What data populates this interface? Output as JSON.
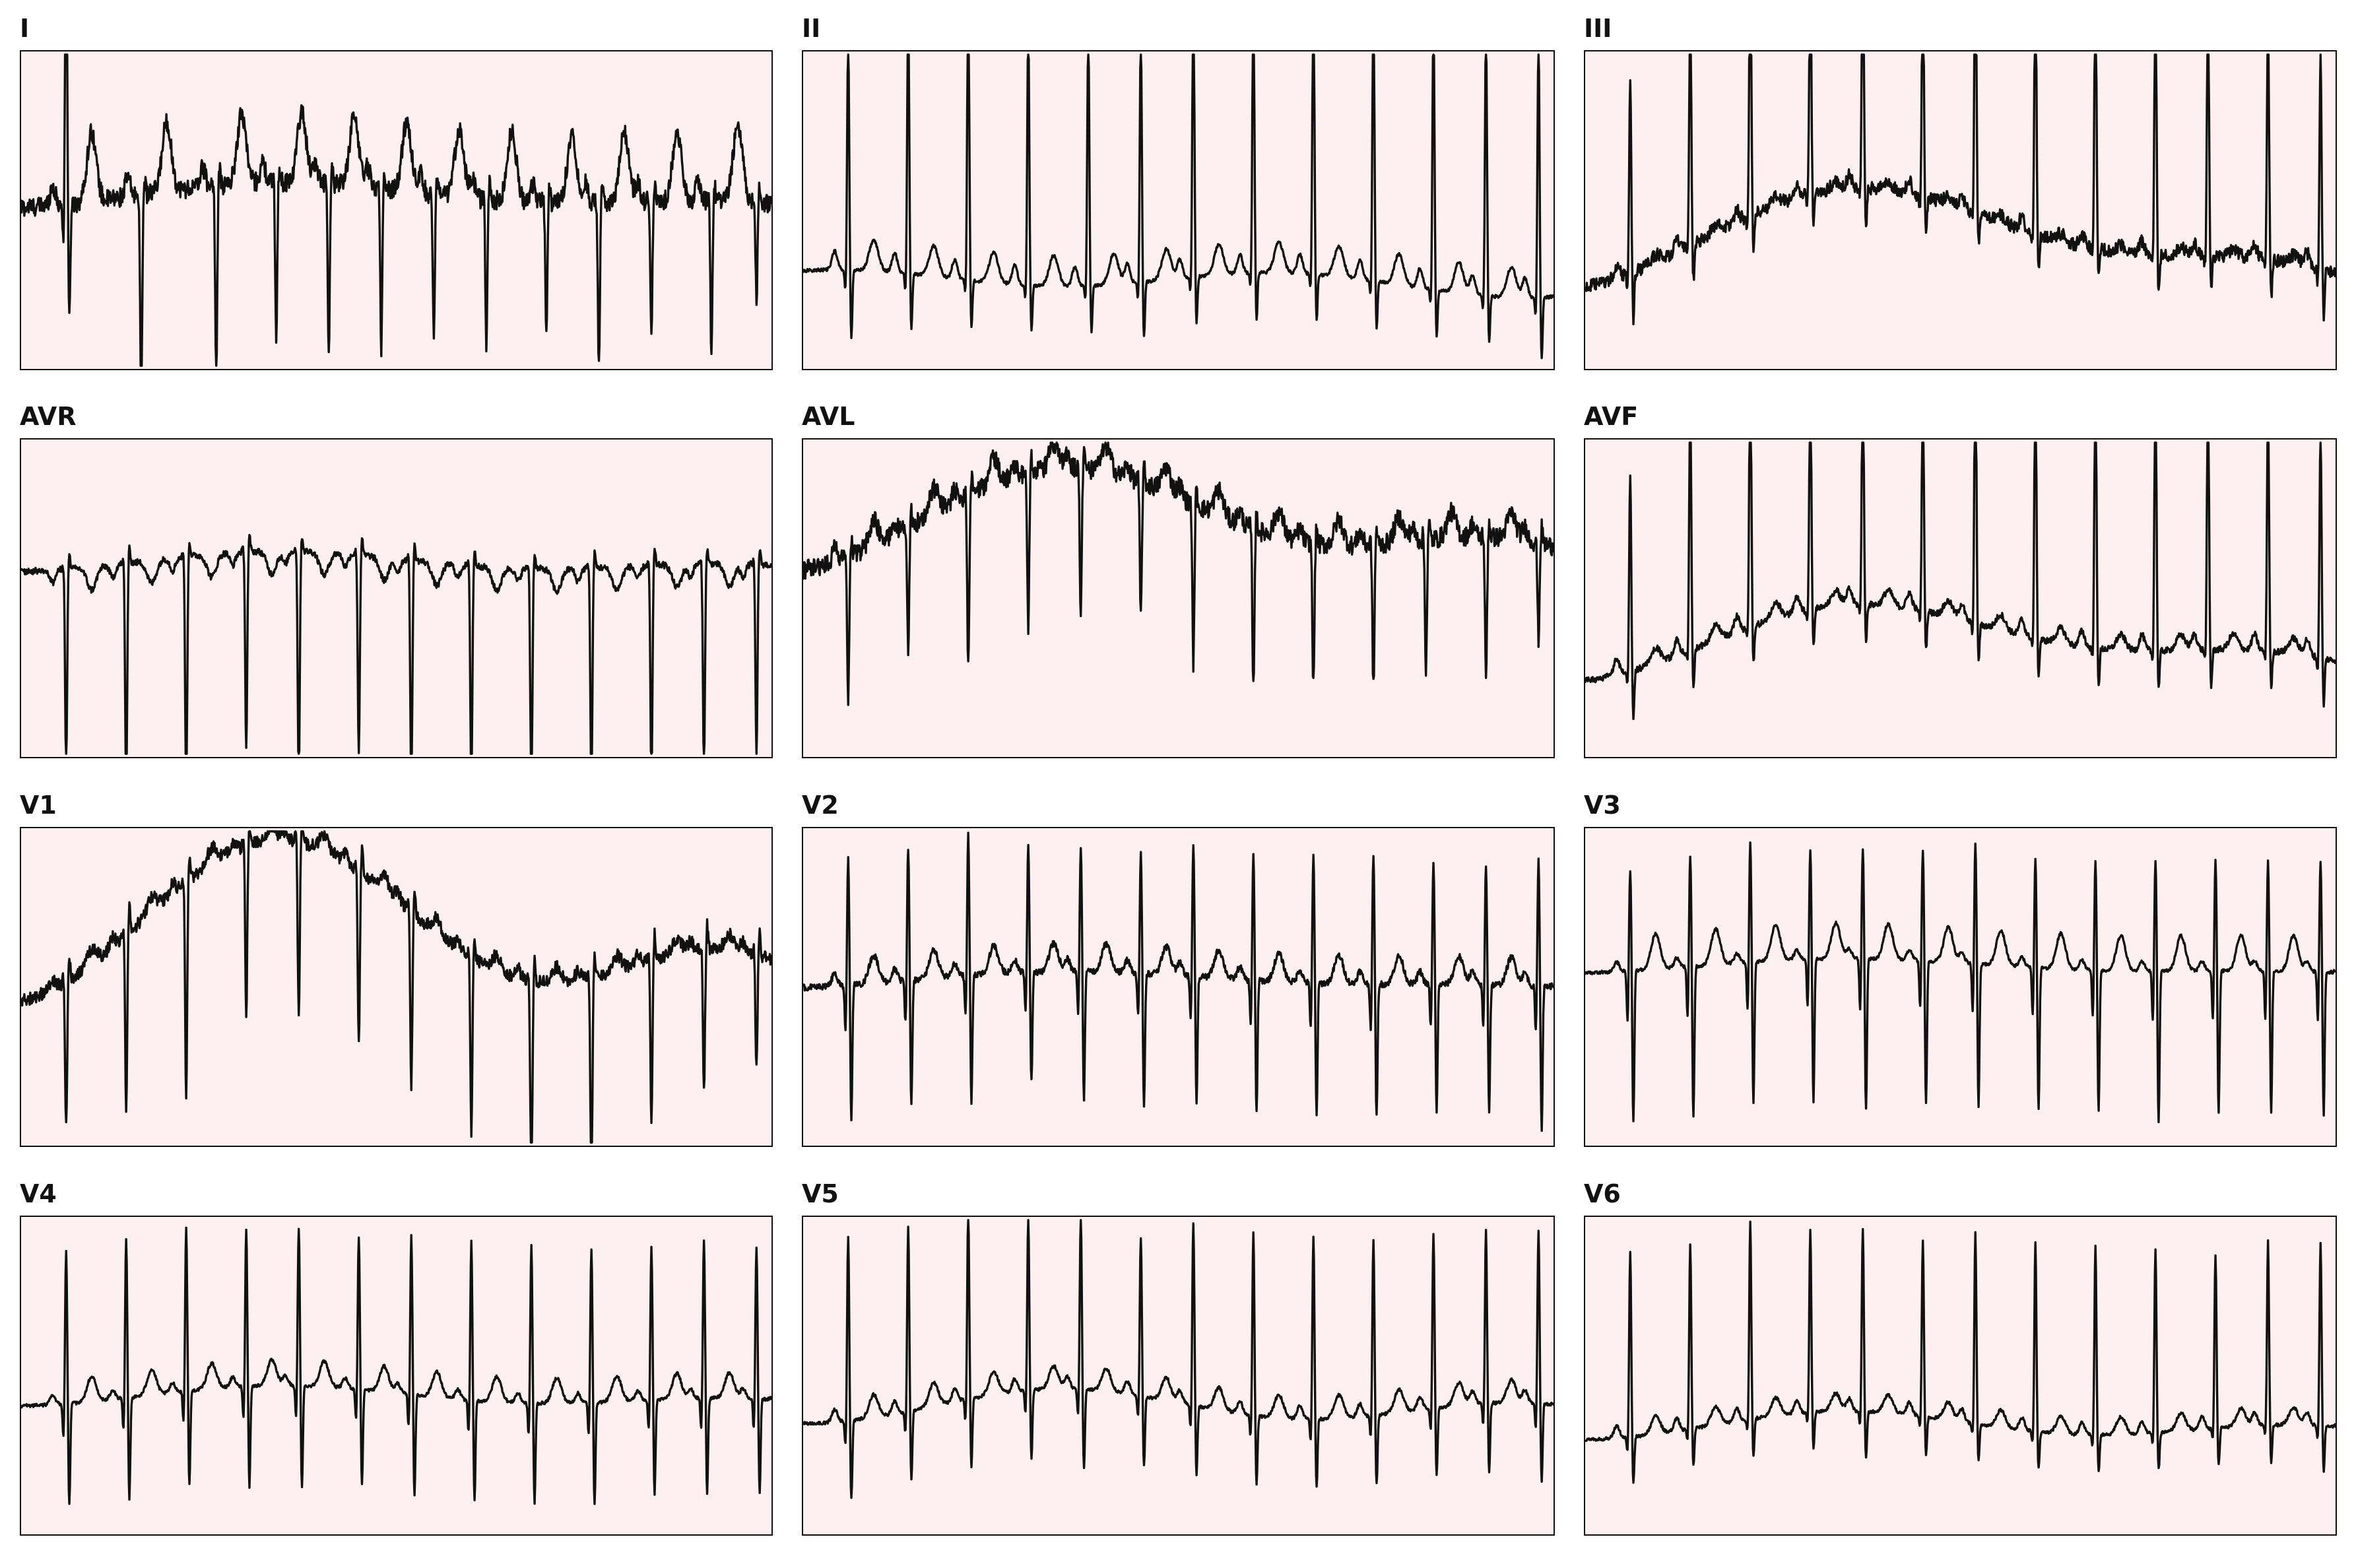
{
  "chart_data": {
    "type": "line",
    "colors": {
      "background": "#ffffff",
      "panel_fill": "#fdf0f0",
      "trace": "#111111",
      "frame": "#111111"
    },
    "grid": false,
    "leads": [
      {
        "name": "I",
        "baseline": 0.52,
        "wander": [
          0.03,
          -0.02,
          0.02,
          0.0
        ],
        "beats": [
          {
            "t": 0.06,
            "r": 0.95,
            "s": -0.38
          },
          {
            "t": 0.16,
            "r": -0.65,
            "s": 0.05
          },
          {
            "t": 0.26,
            "r": -0.6,
            "s": 0.05
          },
          {
            "t": 0.34,
            "r": -0.48,
            "s": 0.05
          },
          {
            "t": 0.41,
            "r": -0.55,
            "s": 0.05
          },
          {
            "t": 0.48,
            "r": -0.5,
            "s": 0.05
          },
          {
            "t": 0.55,
            "r": -0.45,
            "s": 0.05
          },
          {
            "t": 0.62,
            "r": -0.45,
            "s": 0.05
          },
          {
            "t": 0.7,
            "r": -0.4,
            "s": 0.05
          },
          {
            "t": 0.77,
            "r": -0.52,
            "s": 0.05
          },
          {
            "t": 0.84,
            "r": -0.4,
            "s": 0.05
          },
          {
            "t": 0.92,
            "r": -0.48,
            "s": 0.05
          },
          {
            "t": 0.98,
            "r": -0.3,
            "s": 0.05
          }
        ],
        "p": 0.06,
        "t_wave": 0.55,
        "noise": 0.06
      },
      {
        "name": "II",
        "baseline": 0.28,
        "wander": [
          0.02,
          0.03,
          -0.01,
          0.02
        ],
        "beats": [
          {
            "t": 0.06,
            "r": 0.72,
            "s": -0.22
          },
          {
            "t": 0.14,
            "r": 0.82,
            "s": -0.18
          },
          {
            "t": 0.22,
            "r": 0.95,
            "s": -0.15
          },
          {
            "t": 0.3,
            "r": 0.82,
            "s": -0.15
          },
          {
            "t": 0.38,
            "r": 0.8,
            "s": -0.15
          },
          {
            "t": 0.45,
            "r": 0.78,
            "s": -0.18
          },
          {
            "t": 0.52,
            "r": 0.93,
            "s": -0.15
          },
          {
            "t": 0.6,
            "r": 0.93,
            "s": -0.15
          },
          {
            "t": 0.68,
            "r": 0.95,
            "s": -0.15
          },
          {
            "t": 0.76,
            "r": 0.9,
            "s": -0.15
          },
          {
            "t": 0.84,
            "r": 0.85,
            "s": -0.15
          },
          {
            "t": 0.91,
            "r": 0.85,
            "s": -0.15
          },
          {
            "t": 0.98,
            "r": 0.82,
            "s": -0.2
          }
        ],
        "p": 0.06,
        "t_wave": 0.24,
        "noise": 0.01
      },
      {
        "name": "III",
        "baseline": 0.3,
        "wander": [
          0.12,
          -0.06,
          0.1,
          -0.02
        ],
        "beats": [
          {
            "t": 0.06,
            "r": 0.6,
            "s": -0.15
          },
          {
            "t": 0.14,
            "r": 0.78,
            "s": -0.12
          },
          {
            "t": 0.22,
            "r": 0.9,
            "s": -0.12
          },
          {
            "t": 0.3,
            "r": 0.78,
            "s": -0.1
          },
          {
            "t": 0.37,
            "r": 0.78,
            "s": -0.12
          },
          {
            "t": 0.45,
            "r": 0.72,
            "s": -0.12
          },
          {
            "t": 0.52,
            "r": 0.9,
            "s": -0.1
          },
          {
            "t": 0.6,
            "r": 0.9,
            "s": -0.1
          },
          {
            "t": 0.68,
            "r": 0.95,
            "s": -0.1
          },
          {
            "t": 0.76,
            "r": 0.9,
            "s": -0.12
          },
          {
            "t": 0.83,
            "r": 0.85,
            "s": -0.1
          },
          {
            "t": 0.91,
            "r": 0.78,
            "s": -0.12
          },
          {
            "t": 0.98,
            "r": 0.68,
            "s": -0.15
          }
        ],
        "p": 0.04,
        "t_wave": 0.06,
        "noise": 0.04
      },
      {
        "name": "AVR",
        "baseline": 0.6,
        "wander": [
          0.02,
          -0.02,
          0.01,
          0.0
        ],
        "beats": [
          {
            "t": 0.06,
            "r": -0.62,
            "s": 0.05
          },
          {
            "t": 0.14,
            "r": -0.72,
            "s": 0.05
          },
          {
            "t": 0.22,
            "r": -0.78,
            "s": 0.05
          },
          {
            "t": 0.3,
            "r": -0.62,
            "s": 0.05
          },
          {
            "t": 0.37,
            "r": -0.72,
            "s": 0.05
          },
          {
            "t": 0.45,
            "r": -0.62,
            "s": 0.05
          },
          {
            "t": 0.52,
            "r": -0.75,
            "s": 0.05
          },
          {
            "t": 0.6,
            "r": -0.72,
            "s": 0.05
          },
          {
            "t": 0.68,
            "r": -0.75,
            "s": 0.05
          },
          {
            "t": 0.76,
            "r": -0.7,
            "s": 0.05
          },
          {
            "t": 0.84,
            "r": -0.68,
            "s": 0.05
          },
          {
            "t": 0.91,
            "r": -0.65,
            "s": 0.05
          },
          {
            "t": 0.98,
            "r": -0.6,
            "s": 0.05
          }
        ],
        "p": -0.04,
        "t_wave": -0.18,
        "noise": 0.02
      },
      {
        "name": "AVL",
        "baseline": 0.62,
        "wander": [
          0.1,
          -0.08,
          0.12,
          0.0
        ],
        "beats": [
          {
            "t": 0.06,
            "r": -0.45,
            "s": 0.05
          },
          {
            "t": 0.14,
            "r": -0.38,
            "s": 0.05
          },
          {
            "t": 0.22,
            "r": -0.55,
            "s": 0.05
          },
          {
            "t": 0.3,
            "r": -0.48,
            "s": 0.05
          },
          {
            "t": 0.37,
            "r": -0.45,
            "s": 0.05
          },
          {
            "t": 0.45,
            "r": -0.42,
            "s": 0.05
          },
          {
            "t": 0.52,
            "r": -0.5,
            "s": 0.05
          },
          {
            "t": 0.6,
            "r": -0.5,
            "s": 0.05
          },
          {
            "t": 0.68,
            "r": -0.45,
            "s": 0.05
          },
          {
            "t": 0.76,
            "r": -0.45,
            "s": 0.05
          },
          {
            "t": 0.83,
            "r": -0.4,
            "s": 0.05
          },
          {
            "t": 0.91,
            "r": -0.45,
            "s": 0.05
          },
          {
            "t": 0.98,
            "r": -0.3,
            "s": 0.05
          }
        ],
        "p": 0.04,
        "t_wave": 0.2,
        "noise": 0.06
      },
      {
        "name": "AVF",
        "baseline": 0.28,
        "wander": [
          0.08,
          -0.05,
          0.08,
          -0.03
        ],
        "beats": [
          {
            "t": 0.06,
            "r": 0.62,
            "s": -0.15
          },
          {
            "t": 0.14,
            "r": 0.8,
            "s": -0.12
          },
          {
            "t": 0.22,
            "r": 0.92,
            "s": -0.12
          },
          {
            "t": 0.3,
            "r": 0.78,
            "s": -0.12
          },
          {
            "t": 0.37,
            "r": 0.8,
            "s": -0.12
          },
          {
            "t": 0.45,
            "r": 0.72,
            "s": -0.12
          },
          {
            "t": 0.52,
            "r": 0.9,
            "s": -0.12
          },
          {
            "t": 0.6,
            "r": 0.9,
            "s": -0.12
          },
          {
            "t": 0.68,
            "r": 0.95,
            "s": -0.12
          },
          {
            "t": 0.76,
            "r": 0.9,
            "s": -0.12
          },
          {
            "t": 0.83,
            "r": 0.85,
            "s": -0.12
          },
          {
            "t": 0.91,
            "r": 0.8,
            "s": -0.12
          },
          {
            "t": 0.98,
            "r": 0.72,
            "s": -0.15
          }
        ],
        "p": 0.05,
        "t_wave": 0.12,
        "noise": 0.02
      },
      {
        "name": "V1",
        "baseline": 0.5,
        "wander": [
          0.15,
          -0.15,
          0.18,
          0.02
        ],
        "beats": [
          {
            "t": 0.06,
            "r": -0.45,
            "s": 0.08
          },
          {
            "t": 0.14,
            "r": -0.55,
            "s": 0.08
          },
          {
            "t": 0.22,
            "r": -0.68,
            "s": 0.08
          },
          {
            "t": 0.3,
            "r": -0.55,
            "s": 0.08
          },
          {
            "t": 0.37,
            "r": -0.55,
            "s": 0.08
          },
          {
            "t": 0.45,
            "r": -0.55,
            "s": 0.08
          },
          {
            "t": 0.52,
            "r": -0.55,
            "s": 0.08
          },
          {
            "t": 0.6,
            "r": -0.55,
            "s": 0.08
          },
          {
            "t": 0.68,
            "r": -0.7,
            "s": 0.08
          },
          {
            "t": 0.76,
            "r": -0.7,
            "s": 0.08
          },
          {
            "t": 0.84,
            "r": -0.5,
            "s": 0.08
          },
          {
            "t": 0.91,
            "r": -0.45,
            "s": 0.08
          },
          {
            "t": 0.98,
            "r": -0.35,
            "s": 0.08
          }
        ],
        "p": 0.03,
        "t_wave": 0.12,
        "noise": 0.04
      },
      {
        "name": "V2",
        "baseline": 0.5,
        "wander": [
          0.02,
          -0.01,
          0.02,
          0.0
        ],
        "beats": [
          {
            "t": 0.06,
            "r": 0.4,
            "s": -0.42
          },
          {
            "t": 0.14,
            "r": 0.42,
            "s": -0.4
          },
          {
            "t": 0.22,
            "r": 0.45,
            "s": -0.4
          },
          {
            "t": 0.3,
            "r": 0.4,
            "s": -0.35
          },
          {
            "t": 0.37,
            "r": 0.4,
            "s": -0.4
          },
          {
            "t": 0.45,
            "r": 0.38,
            "s": -0.42
          },
          {
            "t": 0.52,
            "r": 0.42,
            "s": -0.4
          },
          {
            "t": 0.6,
            "r": 0.4,
            "s": -0.42
          },
          {
            "t": 0.68,
            "r": 0.4,
            "s": -0.42
          },
          {
            "t": 0.76,
            "r": 0.4,
            "s": -0.42
          },
          {
            "t": 0.84,
            "r": 0.38,
            "s": -0.4
          },
          {
            "t": 0.91,
            "r": 0.38,
            "s": -0.4
          },
          {
            "t": 0.98,
            "r": 0.4,
            "s": -0.45
          }
        ],
        "p": 0.04,
        "t_wave": 0.22,
        "noise": 0.02
      },
      {
        "name": "V3",
        "baseline": 0.55,
        "wander": [
          0.02,
          -0.01,
          0.01,
          0.0
        ],
        "beats": [
          {
            "t": 0.06,
            "r": 0.32,
            "s": -0.48
          },
          {
            "t": 0.14,
            "r": 0.35,
            "s": -0.48
          },
          {
            "t": 0.22,
            "r": 0.38,
            "s": -0.45
          },
          {
            "t": 0.3,
            "r": 0.35,
            "s": -0.45
          },
          {
            "t": 0.37,
            "r": 0.35,
            "s": -0.48
          },
          {
            "t": 0.45,
            "r": 0.35,
            "s": -0.45
          },
          {
            "t": 0.52,
            "r": 0.38,
            "s": -0.45
          },
          {
            "t": 0.6,
            "r": 0.35,
            "s": -0.45
          },
          {
            "t": 0.68,
            "r": 0.35,
            "s": -0.45
          },
          {
            "t": 0.76,
            "r": 0.35,
            "s": -0.48
          },
          {
            "t": 0.84,
            "r": 0.35,
            "s": -0.45
          },
          {
            "t": 0.91,
            "r": 0.35,
            "s": -0.45
          },
          {
            "t": 0.98,
            "r": 0.35,
            "s": -0.45
          }
        ],
        "p": 0.03,
        "t_wave": 0.28,
        "noise": 0.01
      },
      {
        "name": "V4",
        "baseline": 0.42,
        "wander": [
          0.02,
          -0.02,
          0.01,
          0.0
        ],
        "beats": [
          {
            "t": 0.06,
            "r": 0.48,
            "s": -0.32
          },
          {
            "t": 0.14,
            "r": 0.5,
            "s": -0.32
          },
          {
            "t": 0.22,
            "r": 0.52,
            "s": -0.3
          },
          {
            "t": 0.3,
            "r": 0.5,
            "s": -0.32
          },
          {
            "t": 0.37,
            "r": 0.5,
            "s": -0.32
          },
          {
            "t": 0.45,
            "r": 0.48,
            "s": -0.3
          },
          {
            "t": 0.52,
            "r": 0.5,
            "s": -0.32
          },
          {
            "t": 0.6,
            "r": 0.5,
            "s": -0.32
          },
          {
            "t": 0.68,
            "r": 0.5,
            "s": -0.32
          },
          {
            "t": 0.76,
            "r": 0.48,
            "s": -0.32
          },
          {
            "t": 0.84,
            "r": 0.48,
            "s": -0.3
          },
          {
            "t": 0.91,
            "r": 0.5,
            "s": -0.3
          },
          {
            "t": 0.98,
            "r": 0.48,
            "s": -0.3
          }
        ],
        "p": 0.03,
        "t_wave": 0.2,
        "noise": 0.01
      },
      {
        "name": "V5",
        "baseline": 0.38,
        "wander": [
          0.02,
          -0.04,
          0.02,
          0.0
        ],
        "beats": [
          {
            "t": 0.06,
            "r": 0.58,
            "s": -0.25
          },
          {
            "t": 0.14,
            "r": 0.58,
            "s": -0.22
          },
          {
            "t": 0.22,
            "r": 0.6,
            "s": -0.22
          },
          {
            "t": 0.3,
            "r": 0.55,
            "s": -0.22
          },
          {
            "t": 0.37,
            "r": 0.55,
            "s": -0.25
          },
          {
            "t": 0.45,
            "r": 0.5,
            "s": -0.22
          },
          {
            "t": 0.52,
            "r": 0.58,
            "s": -0.22
          },
          {
            "t": 0.6,
            "r": 0.58,
            "s": -0.22
          },
          {
            "t": 0.68,
            "r": 0.58,
            "s": -0.22
          },
          {
            "t": 0.76,
            "r": 0.55,
            "s": -0.22
          },
          {
            "t": 0.84,
            "r": 0.55,
            "s": -0.22
          },
          {
            "t": 0.91,
            "r": 0.55,
            "s": -0.22
          },
          {
            "t": 0.98,
            "r": 0.55,
            "s": -0.25
          }
        ],
        "p": 0.04,
        "t_wave": 0.18,
        "noise": 0.01
      },
      {
        "name": "V6",
        "baseline": 0.32,
        "wander": [
          0.02,
          -0.03,
          0.02,
          0.0
        ],
        "beats": [
          {
            "t": 0.06,
            "r": 0.58,
            "s": -0.15
          },
          {
            "t": 0.14,
            "r": 0.58,
            "s": -0.12
          },
          {
            "t": 0.22,
            "r": 0.62,
            "s": -0.12
          },
          {
            "t": 0.3,
            "r": 0.58,
            "s": -0.12
          },
          {
            "t": 0.37,
            "r": 0.58,
            "s": -0.15
          },
          {
            "t": 0.45,
            "r": 0.55,
            "s": -0.12
          },
          {
            "t": 0.52,
            "r": 0.6,
            "s": -0.12
          },
          {
            "t": 0.6,
            "r": 0.6,
            "s": -0.12
          },
          {
            "t": 0.68,
            "r": 0.6,
            "s": -0.12
          },
          {
            "t": 0.76,
            "r": 0.58,
            "s": -0.12
          },
          {
            "t": 0.84,
            "r": 0.55,
            "s": -0.12
          },
          {
            "t": 0.91,
            "r": 0.58,
            "s": -0.12
          },
          {
            "t": 0.98,
            "r": 0.58,
            "s": -0.15
          }
        ],
        "p": 0.04,
        "t_wave": 0.14,
        "noise": 0.01
      }
    ]
  }
}
